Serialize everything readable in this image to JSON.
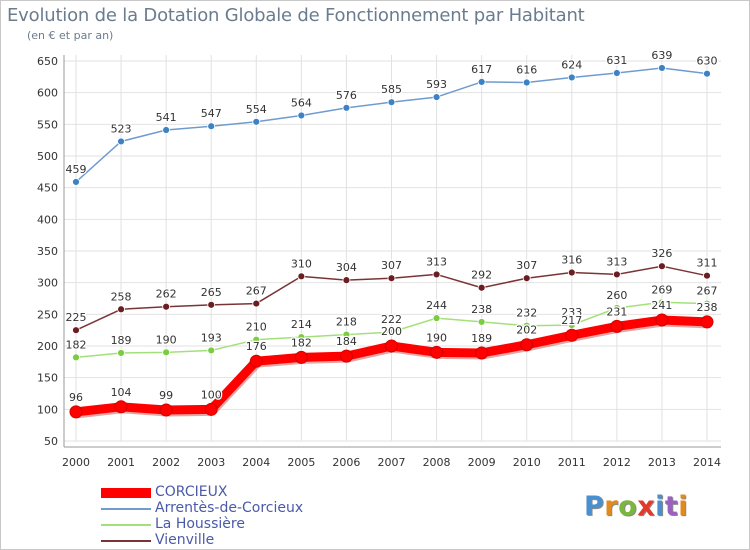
{
  "title": "Evolution de la Dotation Globale de Fonctionnement par Habitant",
  "subtitle": "(en € et par an)",
  "logo": {
    "text": "Proxiti",
    "letter_colors": [
      "#4a90d0",
      "#e08a20",
      "#7ab640",
      "#e23a2a",
      "#4a90d0",
      "#9a62c0",
      "#e08a20"
    ]
  },
  "chart_data": {
    "type": "line",
    "title": "Evolution de la Dotation Globale de Fonctionnement par Habitant",
    "ylabel": "(en € et par an)",
    "xlabel": "",
    "ylim": [
      50,
      650
    ],
    "yticks": [
      50,
      100,
      150,
      200,
      250,
      300,
      350,
      400,
      450,
      500,
      550,
      600,
      650
    ],
    "grid": true,
    "legend_position": "bottom-left",
    "x": [
      "2000",
      "2001",
      "2002",
      "2003",
      "2004",
      "2005",
      "2006",
      "2007",
      "2008",
      "2009",
      "2010",
      "2011",
      "2012",
      "2013",
      "2014"
    ],
    "series": [
      {
        "name": "CORCIEUX",
        "color": "#ff0000",
        "marker_color": "#ff0000",
        "thick": true,
        "values": [
          96,
          104,
          99,
          100,
          176,
          182,
          184,
          200,
          190,
          189,
          202,
          217,
          231,
          241,
          238
        ]
      },
      {
        "name": "Arrentès-de-Corcieux",
        "color": "#6f9bd0",
        "marker_color": "#3d82c4",
        "thick": false,
        "values": [
          459,
          523,
          541,
          547,
          554,
          564,
          576,
          585,
          593,
          617,
          616,
          624,
          631,
          639,
          630
        ]
      },
      {
        "name": "La Houssière",
        "color": "#a4e07a",
        "marker_color": "#7acc40",
        "thick": false,
        "values": [
          182,
          189,
          190,
          193,
          210,
          214,
          218,
          222,
          244,
          238,
          232,
          233,
          260,
          269,
          267
        ]
      },
      {
        "name": "Vienville",
        "color": "#7a3436",
        "marker_color": "#6a1e22",
        "thick": false,
        "values": [
          225,
          258,
          262,
          265,
          267,
          310,
          304,
          307,
          313,
          292,
          307,
          316,
          313,
          326,
          311
        ]
      }
    ]
  }
}
